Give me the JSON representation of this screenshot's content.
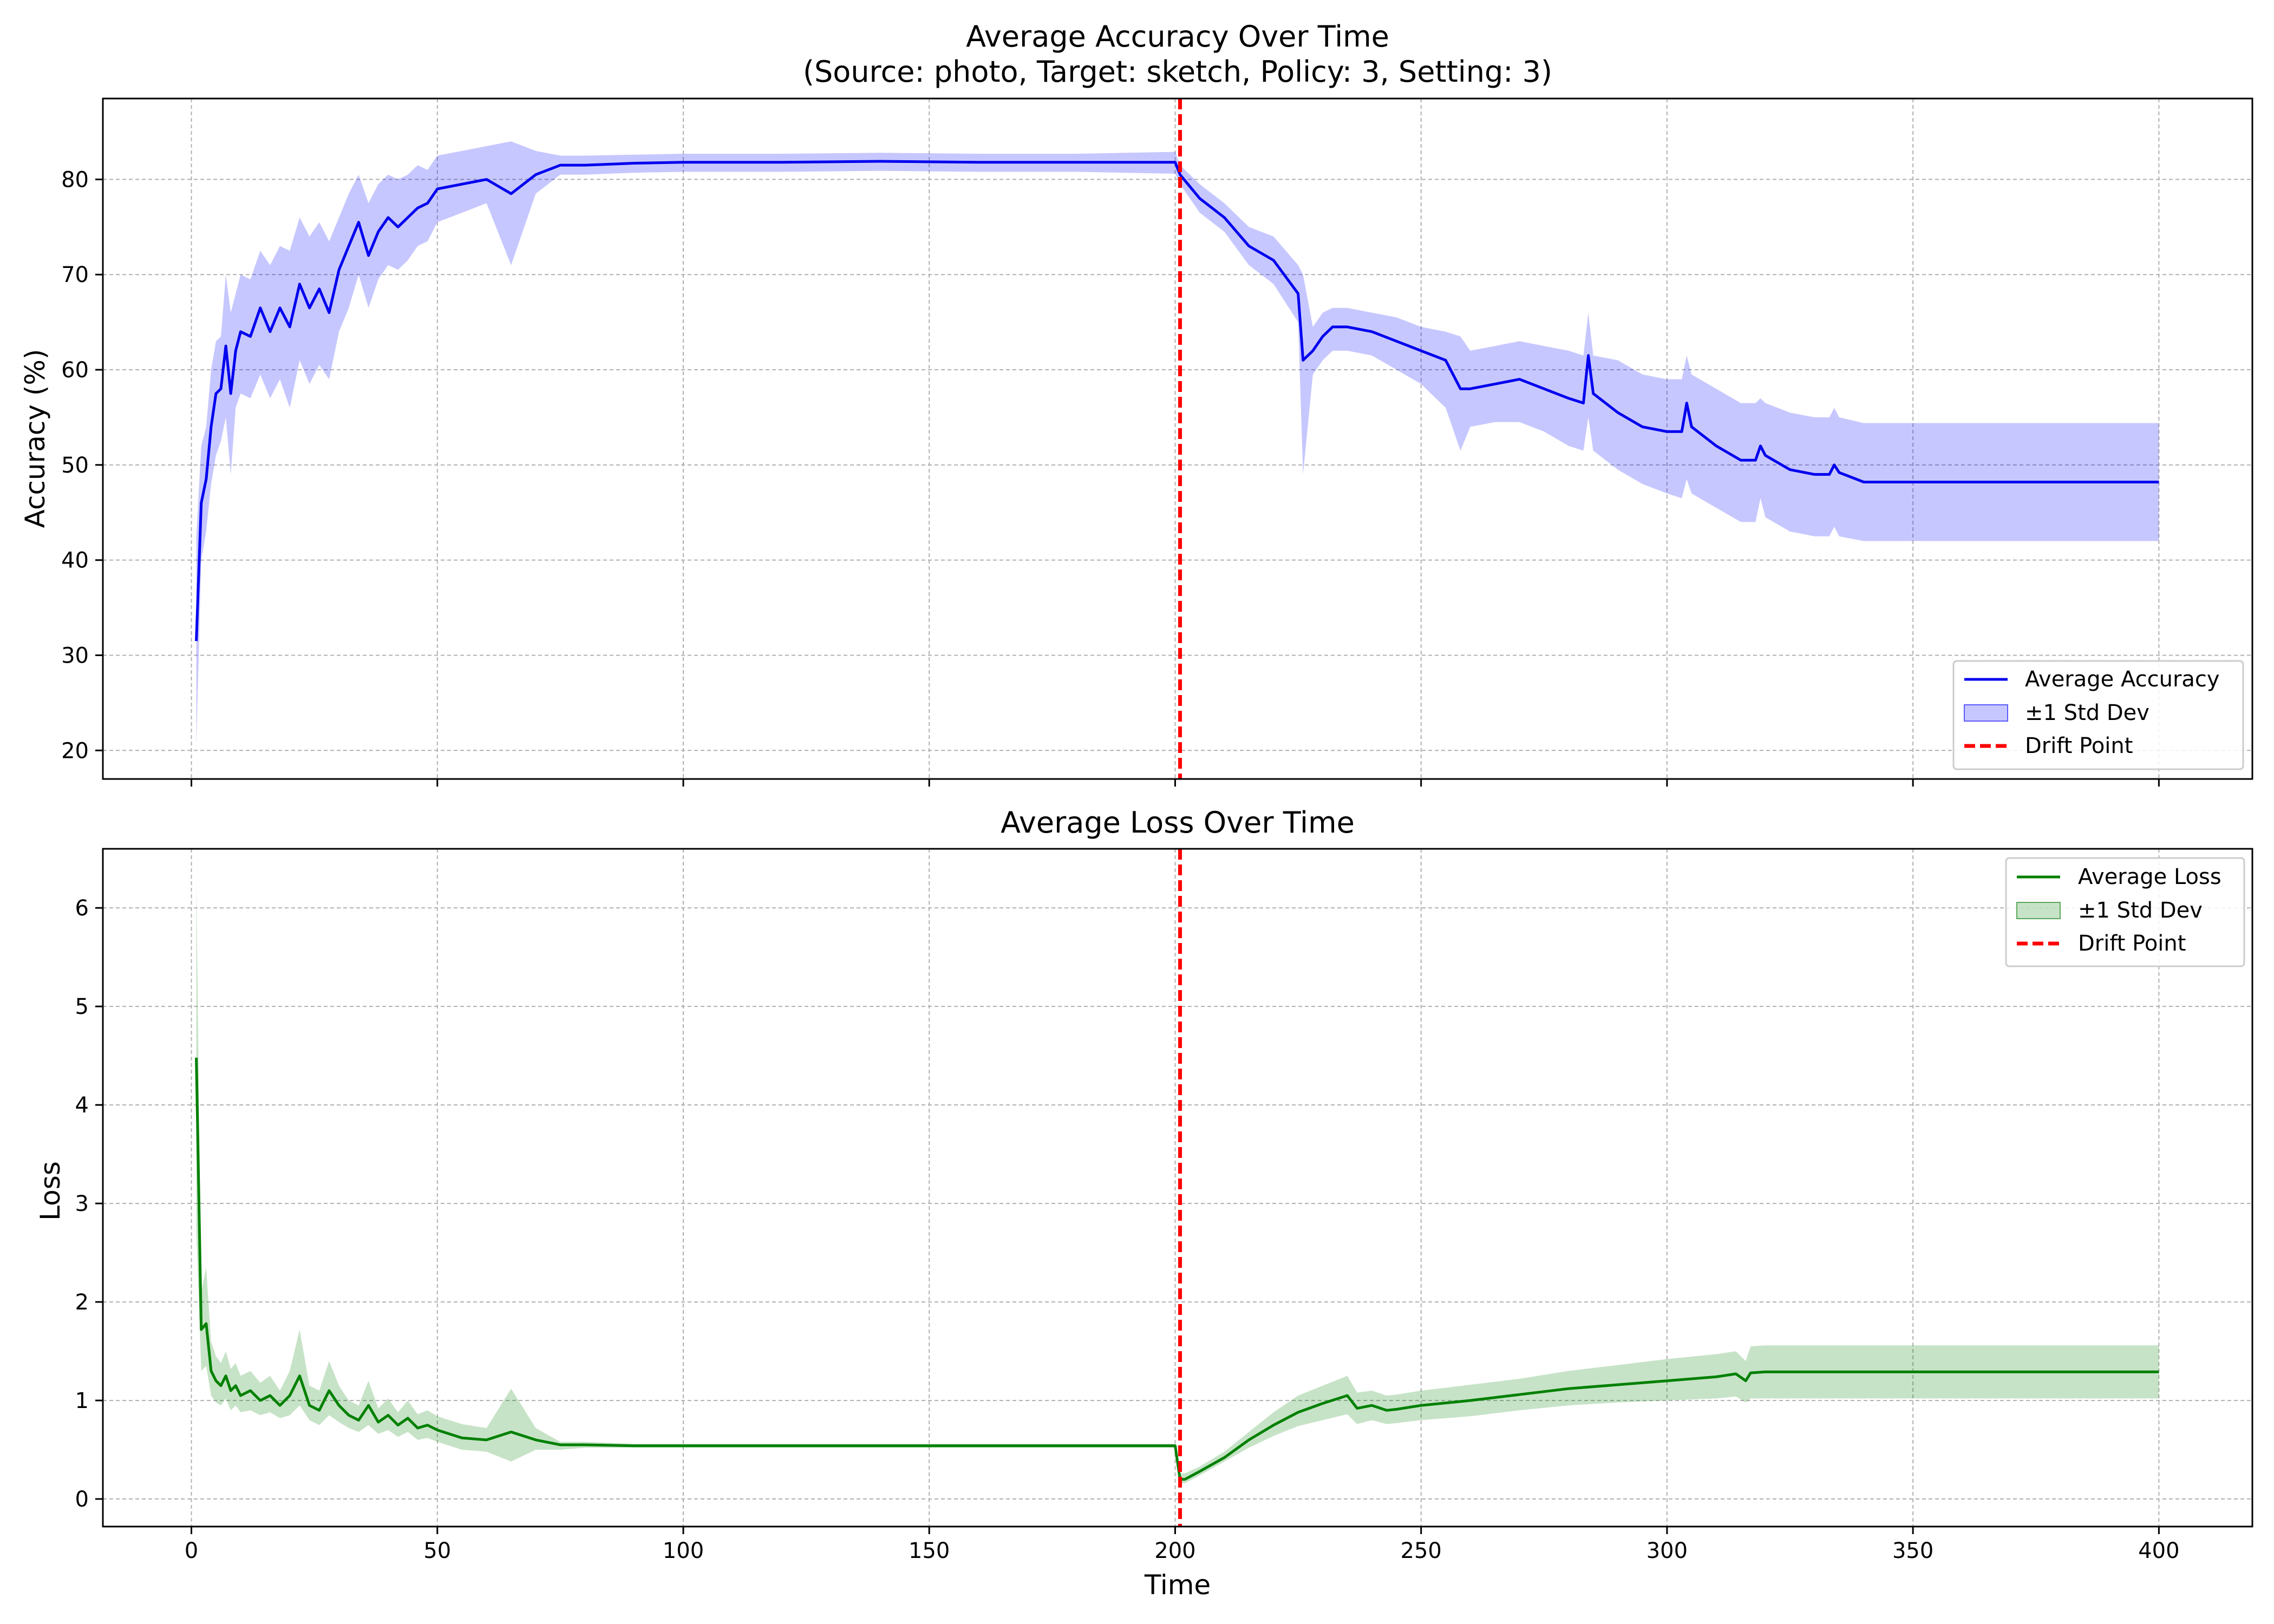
{
  "chart_data": [
    {
      "type": "line",
      "title": "Average Accuracy Over Time",
      "subtitle": "(Source: photo, Target: sketch, Policy: 3, Setting: 3)",
      "xlabel": "",
      "ylabel": "Accuracy (%)",
      "xlim": [
        -18,
        419
      ],
      "ylim": [
        17,
        88.5
      ],
      "xticks": [
        0,
        50,
        100,
        150,
        200,
        250,
        300,
        350,
        400
      ],
      "xtick_labels_visible": false,
      "yticks": [
        20,
        30,
        40,
        50,
        60,
        70,
        80
      ],
      "grid": true,
      "legend_position": "lower-right",
      "drift_point": 201,
      "series": [
        {
          "name": "Average Accuracy",
          "color": "#0000ee",
          "x": [
            1,
            2,
            3,
            4,
            5,
            6,
            7,
            8,
            9,
            10,
            12,
            14,
            16,
            18,
            20,
            22,
            24,
            26,
            28,
            30,
            32,
            34,
            36,
            38,
            40,
            42,
            44,
            46,
            48,
            50,
            55,
            60,
            65,
            70,
            75,
            80,
            90,
            100,
            120,
            140,
            160,
            180,
            200,
            201,
            205,
            210,
            215,
            220,
            225,
            226,
            228,
            230,
            232,
            235,
            240,
            245,
            250,
            255,
            258,
            260,
            265,
            270,
            275,
            280,
            283,
            284,
            285,
            290,
            295,
            300,
            303,
            304,
            305,
            310,
            315,
            318,
            319,
            320,
            325,
            330,
            333,
            334,
            335,
            340,
            350,
            360,
            370,
            380,
            390,
            400
          ],
          "values": [
            31.5,
            46.0,
            48.5,
            54.0,
            57.5,
            58.0,
            62.5,
            57.5,
            62.0,
            64.0,
            63.5,
            66.5,
            64.0,
            66.5,
            64.5,
            69.0,
            66.5,
            68.5,
            66.0,
            70.5,
            73.0,
            75.5,
            72.0,
            74.5,
            76.0,
            75.0,
            76.0,
            77.0,
            77.5,
            79.0,
            79.5,
            80.0,
            78.5,
            80.5,
            81.5,
            81.5,
            81.7,
            81.8,
            81.8,
            81.9,
            81.8,
            81.8,
            81.8,
            80.5,
            78.0,
            76.0,
            73.0,
            71.5,
            68.0,
            61.0,
            62.0,
            63.5,
            64.5,
            64.5,
            64.0,
            63.0,
            62.0,
            61.0,
            58.0,
            58.0,
            58.5,
            59.0,
            58.0,
            57.0,
            56.5,
            61.5,
            57.5,
            55.5,
            54.0,
            53.5,
            53.5,
            56.5,
            54.0,
            52.0,
            50.5,
            50.5,
            52.0,
            51.0,
            49.5,
            49.0,
            49.0,
            50.0,
            49.2,
            48.2,
            48.2,
            48.2,
            48.2,
            48.2,
            48.2,
            48.2
          ]
        },
        {
          "name": "±1 Std Dev",
          "color": "#0000ff",
          "opacity": 0.22,
          "x": [
            1,
            2,
            3,
            4,
            5,
            6,
            7,
            8,
            9,
            10,
            12,
            14,
            16,
            18,
            20,
            22,
            24,
            26,
            28,
            30,
            32,
            34,
            36,
            38,
            40,
            42,
            44,
            46,
            48,
            50,
            55,
            60,
            65,
            70,
            75,
            80,
            90,
            100,
            120,
            140,
            160,
            180,
            200,
            201,
            205,
            210,
            215,
            220,
            225,
            226,
            228,
            230,
            232,
            235,
            240,
            245,
            250,
            255,
            258,
            260,
            265,
            270,
            275,
            280,
            283,
            284,
            285,
            290,
            295,
            300,
            303,
            304,
            305,
            310,
            315,
            318,
            319,
            320,
            325,
            330,
            333,
            334,
            335,
            340,
            350,
            360,
            370,
            380,
            390,
            400
          ],
          "lower": [
            20.5,
            40.0,
            43.0,
            48.0,
            51.0,
            52.5,
            55.0,
            49.0,
            56.0,
            57.5,
            57.0,
            59.5,
            57.0,
            59.0,
            56.0,
            61.0,
            58.5,
            60.5,
            59.0,
            64.0,
            66.5,
            70.0,
            66.5,
            69.5,
            71.0,
            70.5,
            71.5,
            73.0,
            73.5,
            75.5,
            76.5,
            77.5,
            71.0,
            78.5,
            80.5,
            80.5,
            80.7,
            80.8,
            80.8,
            80.9,
            80.8,
            80.8,
            80.6,
            79.5,
            76.5,
            74.5,
            71.0,
            69.0,
            65.0,
            49.0,
            59.5,
            61.0,
            62.0,
            62.0,
            61.5,
            60.0,
            58.5,
            56.0,
            51.5,
            54.0,
            54.5,
            54.5,
            53.5,
            52.0,
            51.5,
            55.0,
            51.5,
            49.5,
            48.0,
            47.0,
            46.5,
            48.5,
            47.0,
            45.5,
            44.0,
            44.0,
            46.5,
            44.5,
            43.0,
            42.5,
            42.5,
            43.5,
            42.5,
            42.0,
            42.0,
            42.0,
            42.0,
            42.0,
            42.0,
            42.0
          ],
          "upper": [
            42.5,
            52.0,
            54.0,
            60.0,
            63.0,
            63.5,
            70.0,
            66.0,
            68.0,
            70.0,
            69.5,
            72.5,
            71.0,
            73.0,
            72.5,
            76.0,
            74.0,
            75.5,
            73.5,
            76.0,
            78.5,
            80.5,
            77.5,
            79.5,
            80.5,
            80.0,
            80.5,
            81.5,
            81.0,
            82.5,
            83.0,
            83.5,
            84.0,
            83.0,
            82.5,
            82.5,
            82.6,
            82.7,
            82.7,
            82.8,
            82.7,
            82.7,
            82.9,
            81.5,
            79.5,
            77.5,
            75.0,
            74.0,
            71.0,
            70.0,
            64.5,
            66.0,
            66.5,
            66.5,
            66.0,
            65.5,
            64.5,
            64.0,
            63.5,
            62.0,
            62.5,
            63.0,
            62.5,
            62.0,
            61.5,
            66.0,
            61.5,
            61.0,
            59.5,
            59.0,
            59.0,
            61.5,
            59.5,
            58.0,
            56.5,
            56.5,
            57.0,
            56.5,
            55.5,
            55.0,
            55.0,
            56.0,
            55.0,
            54.4,
            54.4,
            54.4,
            54.4,
            54.4,
            54.4,
            54.4
          ]
        },
        {
          "name": "Drift Point",
          "color": "#ff0000"
        }
      ]
    },
    {
      "type": "line",
      "title": "Average Loss Over Time",
      "xlabel": "Time",
      "ylabel": "Loss",
      "xlim": [
        -18,
        419
      ],
      "ylim": [
        -0.28,
        6.6
      ],
      "xticks": [
        0,
        50,
        100,
        150,
        200,
        250,
        300,
        350,
        400
      ],
      "yticks": [
        0,
        1,
        2,
        3,
        4,
        5,
        6
      ],
      "grid": true,
      "legend_position": "upper-right",
      "drift_point": 201,
      "series": [
        {
          "name": "Average Loss",
          "color": "#008000",
          "x": [
            1,
            2,
            3,
            4,
            5,
            6,
            7,
            8,
            9,
            10,
            12,
            14,
            16,
            18,
            20,
            22,
            24,
            26,
            28,
            30,
            32,
            34,
            36,
            38,
            40,
            42,
            44,
            46,
            48,
            50,
            55,
            60,
            65,
            70,
            75,
            80,
            90,
            100,
            120,
            140,
            160,
            180,
            200,
            201,
            202,
            205,
            210,
            215,
            220,
            225,
            230,
            235,
            237,
            240,
            243,
            245,
            250,
            260,
            270,
            280,
            290,
            300,
            310,
            314,
            316,
            317,
            320,
            330,
            340,
            350,
            360,
            370,
            380,
            390,
            400
          ],
          "values": [
            4.48,
            1.72,
            1.78,
            1.3,
            1.2,
            1.15,
            1.25,
            1.1,
            1.15,
            1.05,
            1.1,
            1.0,
            1.05,
            0.95,
            1.05,
            1.25,
            0.95,
            0.9,
            1.1,
            0.95,
            0.85,
            0.8,
            0.95,
            0.78,
            0.85,
            0.75,
            0.82,
            0.72,
            0.75,
            0.7,
            0.62,
            0.6,
            0.68,
            0.6,
            0.55,
            0.55,
            0.54,
            0.54,
            0.54,
            0.54,
            0.54,
            0.54,
            0.54,
            0.2,
            0.2,
            0.28,
            0.42,
            0.6,
            0.75,
            0.88,
            0.97,
            1.05,
            0.92,
            0.95,
            0.9,
            0.91,
            0.95,
            1.0,
            1.06,
            1.12,
            1.16,
            1.2,
            1.24,
            1.27,
            1.2,
            1.28,
            1.29,
            1.29,
            1.29,
            1.29,
            1.29,
            1.29,
            1.29,
            1.29,
            1.29
          ]
        },
        {
          "name": "±1 Std Dev",
          "color": "#008000",
          "opacity": 0.22,
          "x": [
            1,
            2,
            3,
            4,
            5,
            6,
            7,
            8,
            9,
            10,
            12,
            14,
            16,
            18,
            20,
            22,
            24,
            26,
            28,
            30,
            32,
            34,
            36,
            38,
            40,
            42,
            44,
            46,
            48,
            50,
            55,
            60,
            65,
            70,
            75,
            80,
            90,
            100,
            120,
            140,
            160,
            180,
            200,
            201,
            202,
            205,
            210,
            215,
            220,
            225,
            230,
            235,
            237,
            240,
            243,
            245,
            250,
            260,
            270,
            280,
            290,
            300,
            310,
            314,
            316,
            317,
            320,
            330,
            340,
            350,
            360,
            370,
            380,
            390,
            400
          ],
          "lower": [
            2.7,
            1.3,
            1.35,
            1.05,
            0.98,
            0.95,
            1.02,
            0.9,
            0.95,
            0.88,
            0.9,
            0.85,
            0.88,
            0.82,
            0.85,
            0.95,
            0.8,
            0.75,
            0.85,
            0.78,
            0.72,
            0.68,
            0.75,
            0.66,
            0.7,
            0.63,
            0.68,
            0.6,
            0.62,
            0.58,
            0.5,
            0.48,
            0.38,
            0.5,
            0.5,
            0.52,
            0.52,
            0.52,
            0.52,
            0.52,
            0.52,
            0.52,
            0.52,
            0.16,
            0.16,
            0.24,
            0.38,
            0.52,
            0.64,
            0.74,
            0.8,
            0.86,
            0.76,
            0.8,
            0.76,
            0.77,
            0.8,
            0.84,
            0.9,
            0.95,
            0.98,
            1.0,
            1.02,
            1.04,
            0.98,
            1.02,
            1.02,
            1.02,
            1.02,
            1.02,
            1.02,
            1.02,
            1.02,
            1.02,
            1.02
          ],
          "upper": [
            6.3,
            2.1,
            2.35,
            1.6,
            1.45,
            1.38,
            1.5,
            1.32,
            1.38,
            1.25,
            1.3,
            1.18,
            1.25,
            1.1,
            1.3,
            1.72,
            1.15,
            1.1,
            1.4,
            1.15,
            1.0,
            0.95,
            1.2,
            0.92,
            1.02,
            0.88,
            1.0,
            0.86,
            0.9,
            0.84,
            0.76,
            0.72,
            1.12,
            0.72,
            0.58,
            0.58,
            0.56,
            0.56,
            0.56,
            0.56,
            0.56,
            0.56,
            0.56,
            0.26,
            0.26,
            0.33,
            0.48,
            0.68,
            0.88,
            1.05,
            1.15,
            1.25,
            1.08,
            1.1,
            1.05,
            1.06,
            1.1,
            1.16,
            1.22,
            1.3,
            1.36,
            1.42,
            1.47,
            1.5,
            1.4,
            1.55,
            1.56,
            1.56,
            1.56,
            1.56,
            1.56,
            1.56,
            1.56,
            1.56,
            1.56
          ]
        },
        {
          "name": "Drift Point",
          "color": "#ff0000"
        }
      ]
    }
  ]
}
